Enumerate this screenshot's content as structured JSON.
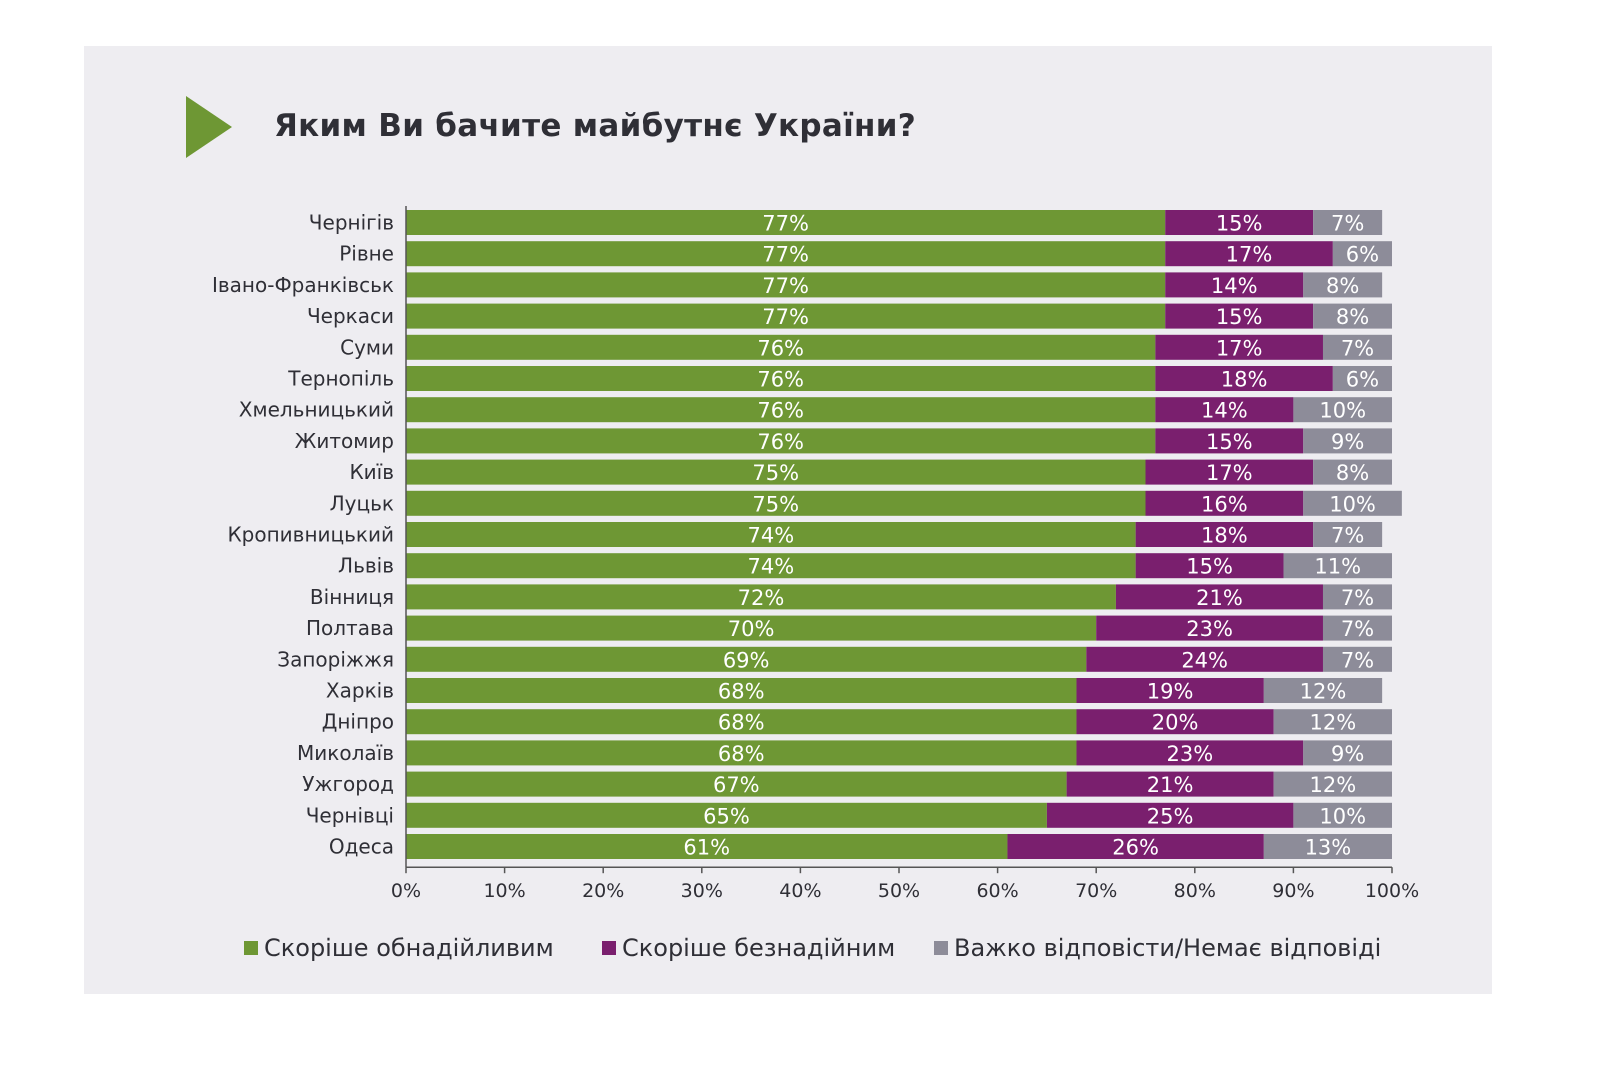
{
  "colors": {
    "hopeful": "#6e9734",
    "hopeless": "#7a1f6e",
    "no_answer": "#8d8c99",
    "accent_arrow": "#6e9734",
    "bar_separator": "#ffffff"
  },
  "chart_data": {
    "type": "bar",
    "orientation": "horizontal",
    "stacked": true,
    "title": "Яким Ви бачите майбутнє України?",
    "xlim": [
      0,
      100
    ],
    "x_ticks": [
      "0%",
      "10%",
      "20%",
      "30%",
      "40%",
      "50%",
      "60%",
      "70%",
      "80%",
      "90%",
      "100%"
    ],
    "grid": false,
    "legend_position": "bottom",
    "categories": [
      "Чернігів",
      "Рівне",
      "Івано-Франківськ",
      "Черкаси",
      "Суми",
      "Тернопіль",
      "Хмельницький",
      "Житомир",
      "Київ",
      "Луцьк",
      "Кропивницький",
      "Львів",
      "Вінниця",
      "Полтава",
      "Запоріжжя",
      "Харків",
      "Дніпро",
      "Миколаїв",
      "Ужгород",
      "Чернівці",
      "Одеса"
    ],
    "series": [
      {
        "name": "Скоріше обнадійливим",
        "color": "#6e9734",
        "values": [
          77,
          77,
          77,
          77,
          76,
          76,
          76,
          76,
          75,
          75,
          74,
          74,
          72,
          70,
          69,
          68,
          68,
          68,
          67,
          65,
          61
        ]
      },
      {
        "name": "Скоріше безнадійним",
        "color": "#7a1f6e",
        "values": [
          15,
          17,
          14,
          15,
          17,
          18,
          14,
          15,
          17,
          16,
          18,
          15,
          21,
          23,
          24,
          19,
          20,
          23,
          21,
          25,
          26
        ]
      },
      {
        "name": "Важко відповісти/Немає відповіді",
        "color": "#8d8c99",
        "values": [
          7,
          6,
          8,
          8,
          7,
          6,
          10,
          9,
          8,
          10,
          7,
          11,
          7,
          7,
          7,
          12,
          12,
          9,
          12,
          10,
          13
        ]
      }
    ]
  }
}
